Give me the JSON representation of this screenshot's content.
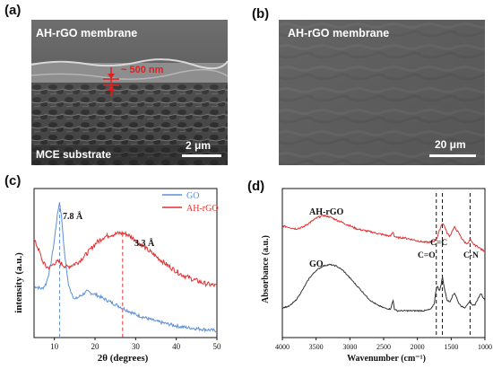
{
  "panels": {
    "a": {
      "label": "(a)",
      "title": "AH-rGO membrane",
      "thickness_label": "~ 500 nm",
      "substrate_label": "MCE  substrate",
      "scale_label": "2 μm"
    },
    "b": {
      "label": "(b)",
      "title": "AH-rGO membrane",
      "scale_label": "20 μm"
    },
    "c": {
      "label": "(c)",
      "peak_go_label": "7.8 Å",
      "peak_ahrgo_label": "3.3 Å"
    },
    "d": {
      "label": "(d)",
      "series_label_ahrgo": "AH-rGO",
      "series_label_go": "GO",
      "band_co": "C=O",
      "band_cc": "C=C",
      "band_cn": "C-N"
    }
  },
  "colors": {
    "go_blue": "#5b8fd8",
    "ahrgo_red": "#e03030",
    "ftir_black": "#333333",
    "annotation_red": "#e02020"
  },
  "chart_data": [
    {
      "type": "line",
      "panel": "c",
      "xlabel": "2θ (degrees)",
      "ylabel": "intensity (a.u.)",
      "xlim": [
        5,
        50
      ],
      "xticks": [
        10,
        20,
        30,
        40,
        50
      ],
      "legend": "top-right",
      "series": [
        {
          "name": "GO",
          "x": [
            5,
            7,
            8,
            9,
            10,
            10.5,
            11,
            11.3,
            11.8,
            12.5,
            13.5,
            15,
            16.5,
            18,
            20,
            22,
            24,
            26,
            28,
            30,
            32,
            35,
            38,
            41,
            44,
            47,
            50
          ],
          "y": [
            0.38,
            0.36,
            0.4,
            0.52,
            0.72,
            0.85,
            0.96,
            1.0,
            0.88,
            0.62,
            0.38,
            0.28,
            0.31,
            0.34,
            0.32,
            0.29,
            0.26,
            0.23,
            0.2,
            0.17,
            0.15,
            0.12,
            0.1,
            0.08,
            0.07,
            0.06,
            0.05
          ]
        },
        {
          "name": "AH-rGO",
          "x": [
            5,
            6,
            7,
            8,
            9,
            10,
            11,
            12,
            13,
            14,
            16,
            18,
            20,
            22,
            24,
            26,
            27,
            28,
            30,
            32,
            35,
            38,
            41,
            44,
            47,
            50
          ],
          "y": [
            0.72,
            0.66,
            0.57,
            0.52,
            0.52,
            0.55,
            0.56,
            0.54,
            0.52,
            0.53,
            0.56,
            0.62,
            0.69,
            0.74,
            0.76,
            0.77,
            0.77,
            0.76,
            0.72,
            0.67,
            0.6,
            0.53,
            0.47,
            0.43,
            0.4,
            0.38
          ]
        }
      ],
      "reference_lines_x": [
        11.3,
        26.8
      ]
    },
    {
      "type": "line",
      "panel": "d",
      "xlabel": "Wavenumber (cm⁻¹)",
      "ylabel": "Absorbance (a.u.)",
      "xlim": [
        4000,
        1000
      ],
      "xticks": [
        4000,
        3500,
        3000,
        2500,
        2000,
        1500,
        1000
      ],
      "x_reversed": true,
      "series": [
        {
          "name": "AH-rGO",
          "x": [
            4000,
            3900,
            3800,
            3700,
            3600,
            3500,
            3400,
            3300,
            3200,
            3100,
            3000,
            2900,
            2800,
            2700,
            2600,
            2500,
            2400,
            2360,
            2340,
            2300,
            2200,
            2100,
            2000,
            1900,
            1800,
            1750,
            1720,
            1700,
            1680,
            1650,
            1630,
            1600,
            1560,
            1520,
            1480,
            1450,
            1400,
            1350,
            1300,
            1250,
            1220,
            1200,
            1150,
            1100,
            1050,
            1000
          ],
          "y": [
            0.8,
            0.79,
            0.78,
            0.79,
            0.82,
            0.85,
            0.87,
            0.86,
            0.84,
            0.82,
            0.8,
            0.78,
            0.77,
            0.76,
            0.75,
            0.74,
            0.73,
            0.76,
            0.73,
            0.72,
            0.72,
            0.71,
            0.7,
            0.69,
            0.69,
            0.7,
            0.71,
            0.73,
            0.76,
            0.8,
            0.82,
            0.8,
            0.75,
            0.73,
            0.77,
            0.79,
            0.76,
            0.72,
            0.69,
            0.68,
            0.71,
            0.69,
            0.67,
            0.66,
            0.64,
            0.63
          ]
        },
        {
          "name": "GO",
          "x": [
            4000,
            3900,
            3800,
            3700,
            3600,
            3500,
            3400,
            3300,
            3200,
            3100,
            3000,
            2900,
            2800,
            2700,
            2600,
            2500,
            2400,
            2360,
            2340,
            2300,
            2200,
            2100,
            2000,
            1900,
            1800,
            1750,
            1720,
            1700,
            1680,
            1650,
            1630,
            1600,
            1560,
            1520,
            1480,
            1450,
            1420,
            1400,
            1350,
            1300,
            1250,
            1220,
            1200,
            1150,
            1100,
            1060,
            1040,
            1000
          ],
          "y": [
            0.25,
            0.26,
            0.3,
            0.37,
            0.45,
            0.5,
            0.53,
            0.54,
            0.53,
            0.5,
            0.45,
            0.4,
            0.35,
            0.3,
            0.27,
            0.25,
            0.24,
            0.3,
            0.24,
            0.23,
            0.23,
            0.23,
            0.23,
            0.23,
            0.24,
            0.28,
            0.38,
            0.4,
            0.36,
            0.4,
            0.46,
            0.38,
            0.3,
            0.29,
            0.33,
            0.35,
            0.32,
            0.29,
            0.26,
            0.25,
            0.28,
            0.29,
            0.27,
            0.27,
            0.31,
            0.35,
            0.33,
            0.3
          ]
        }
      ],
      "reference_lines_x": [
        1720,
        1630,
        1220
      ]
    }
  ]
}
